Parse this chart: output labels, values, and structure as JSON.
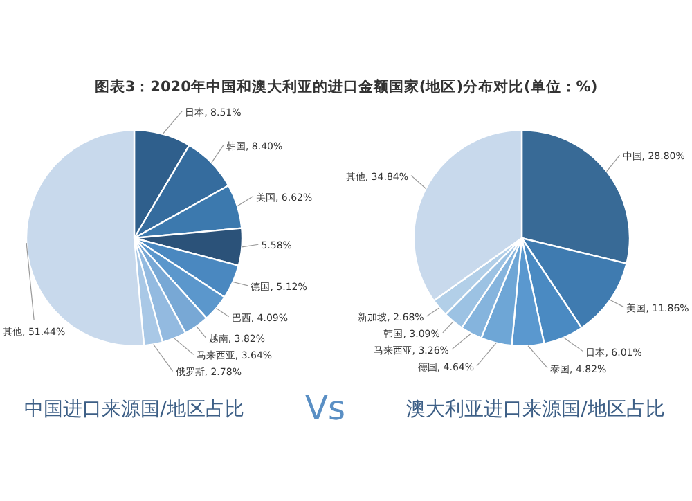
{
  "chart_data": [
    {
      "type": "pie",
      "title": "图表3：2020年中国和澳大利亚的进口金额国家(地区)分布对比(单位：%)",
      "xlabel": "中国进口来源国/地区占比",
      "annotations": [
        "Vs"
      ],
      "value_labels": [
        ", 8.51%",
        ", 8.40%",
        ", 6.62%",
        "5.58%",
        ", 5.12%",
        ", 4.09%",
        ", 3.82%",
        ", 3.64%",
        ", 2.78%",
        ", 51.44%"
      ],
      "categories": [
        "日本",
        "韩国",
        "美国",
        null,
        "德国",
        "巴西",
        "越南",
        "马来西亚",
        "俄罗斯",
        "其他"
      ],
      "values": [
        8.51,
        8.4,
        6.62,
        5.58,
        5.12,
        4.09,
        3.82,
        3.64,
        2.78,
        51.44
      ],
      "colors": [
        "#2f5f8c",
        "#356c9e",
        "#3c79ae",
        "#2b5279",
        "#4a88c0",
        "#5b97cc",
        "#78a8d5",
        "#93bae0",
        "#a9c8e6",
        "#c8d9ec"
      ]
    },
    {
      "type": "pie",
      "xlabel": "澳大利亚进口来源国/地区占比",
      "value_labels": [
        ", 28.80%",
        ", 11.86%",
        ", 6.01%",
        ", 4.82%",
        ", 4.64%",
        ", 3.26%",
        ", 3.09%",
        ", 2.68%",
        ", 34.84%"
      ],
      "categories": [
        "中国",
        "美国",
        "日本",
        "泰国",
        "德国",
        "马来西亚",
        "韩国",
        "新加坡",
        "其他"
      ],
      "values": [
        28.8,
        11.86,
        6.01,
        4.82,
        4.64,
        3.26,
        3.09,
        2.68,
        34.84
      ],
      "colors": [
        "#386a96",
        "#3f7bb0",
        "#4a8ac2",
        "#5a98cf",
        "#6ea6d6",
        "#85b4dd",
        "#9cc2e3",
        "#b2cfe8",
        "#c8d9ec"
      ]
    }
  ]
}
